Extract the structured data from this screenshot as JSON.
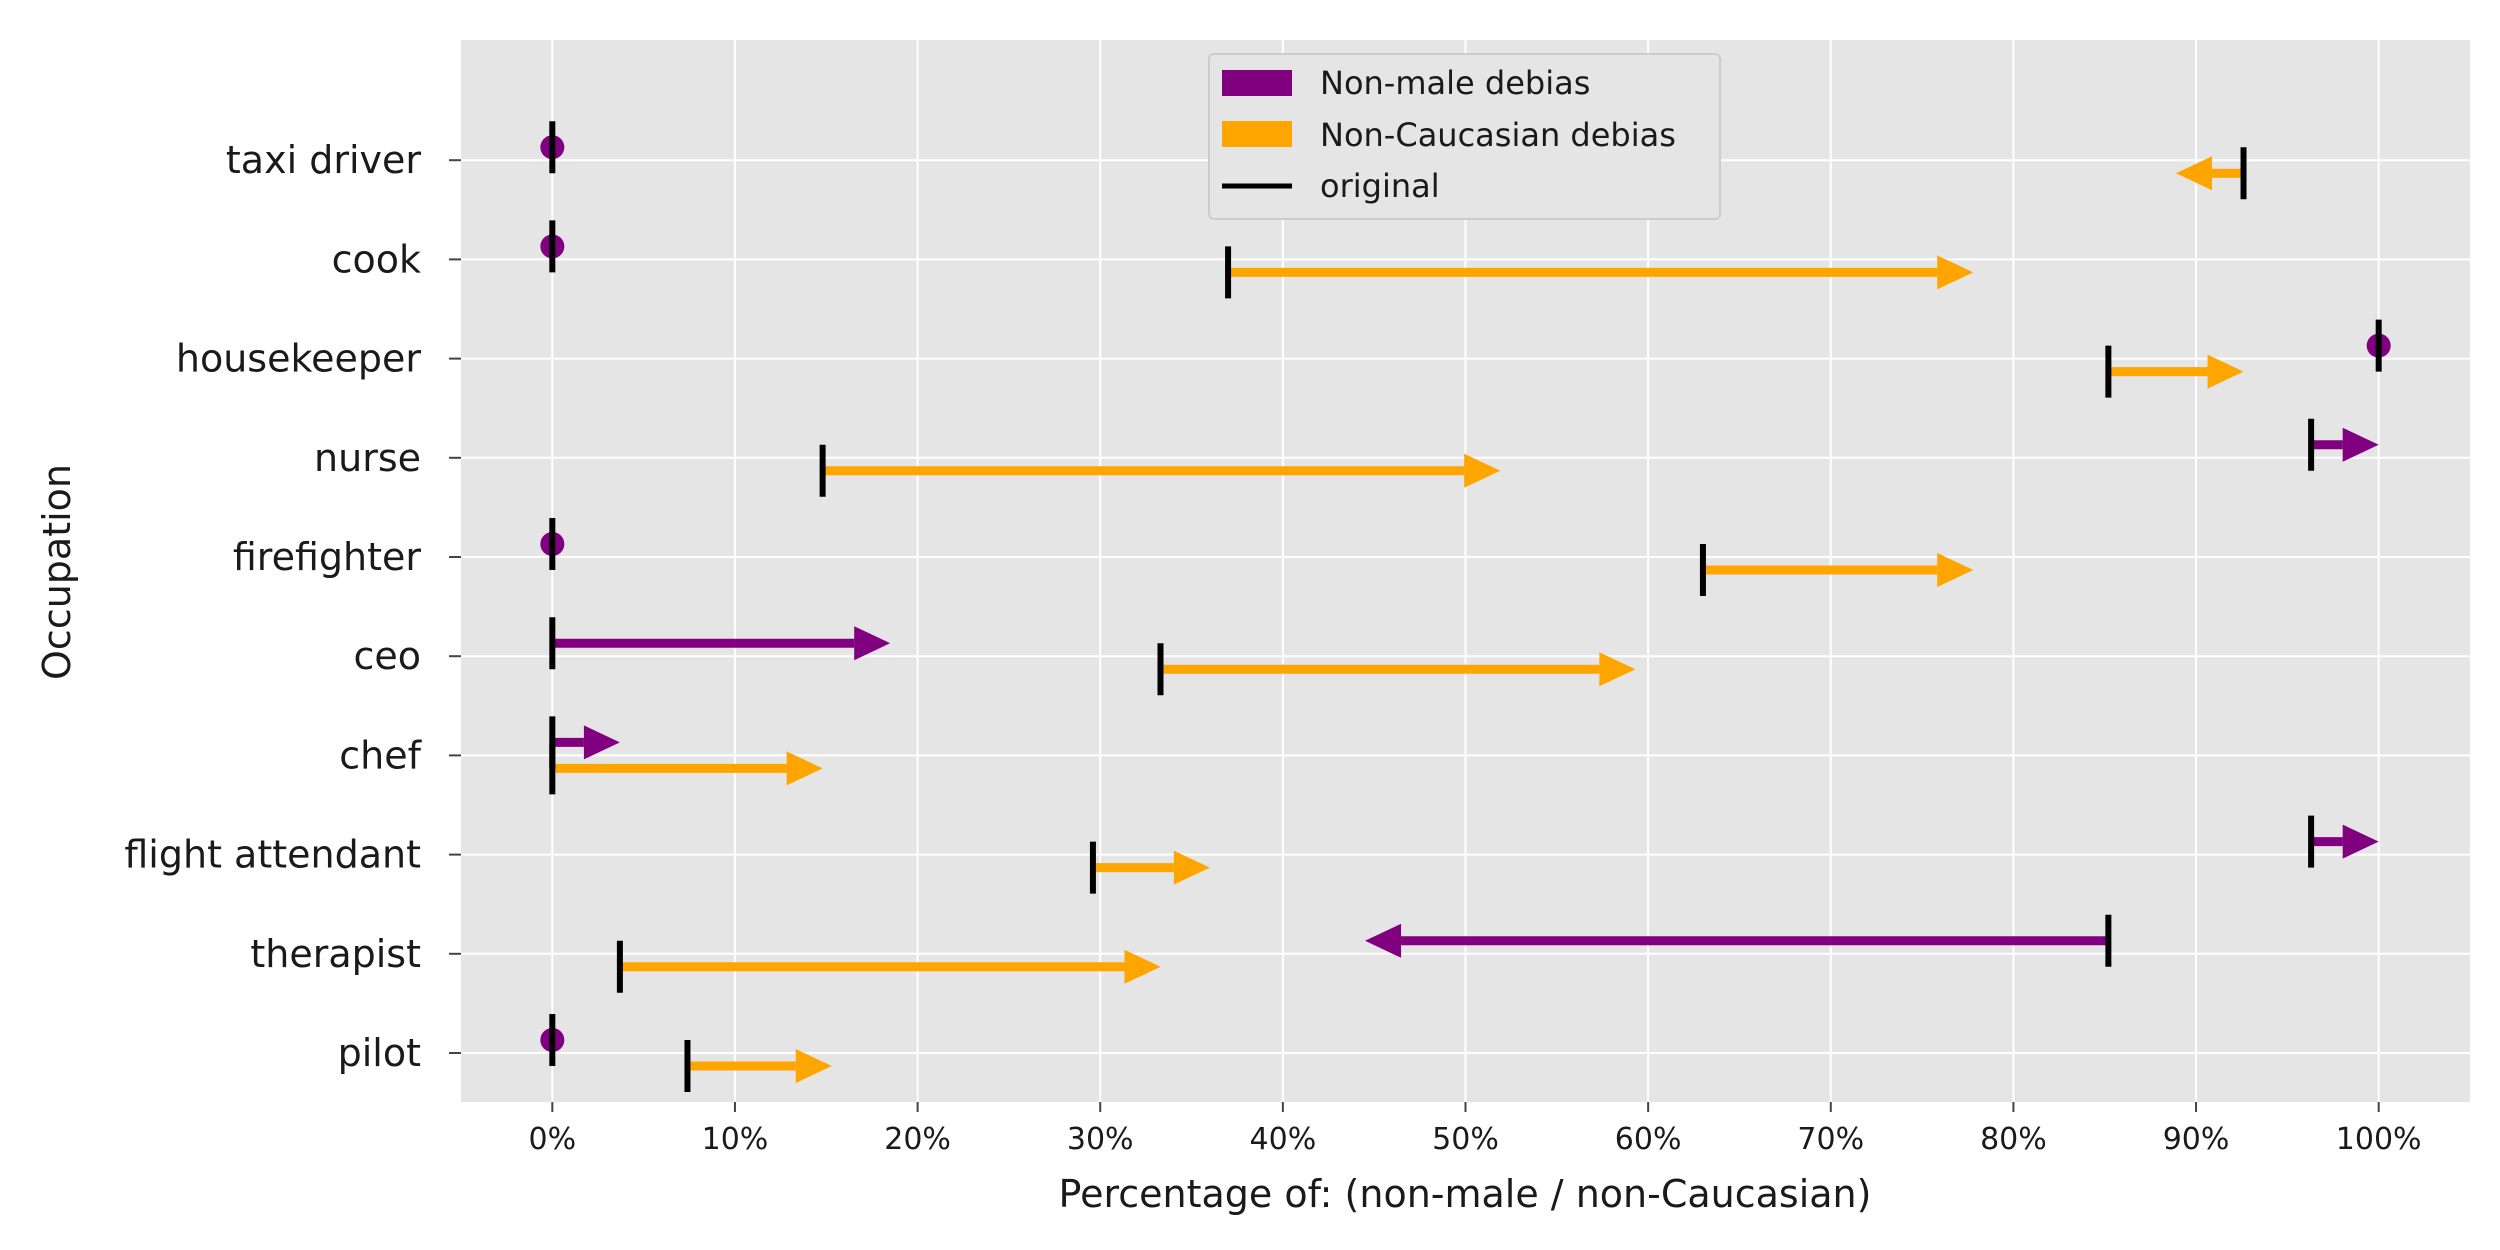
{
  "chart_data": {
    "type": "arrow-dumbbell",
    "xlabel": "Percentage of: (non-male / non-Caucasian)",
    "ylabel": "Occupation",
    "xlim": [
      -5,
      105
    ],
    "xticks": [
      0,
      10,
      20,
      30,
      40,
      50,
      60,
      70,
      80,
      90,
      100
    ],
    "xtick_labels": [
      "0%",
      "10%",
      "20%",
      "30%",
      "40%",
      "50%",
      "60%",
      "70%",
      "80%",
      "90%",
      "100%"
    ],
    "categories": [
      "pilot",
      "therapist",
      "flight attendant",
      "chef",
      "ceo",
      "firefighter",
      "nurse",
      "housekeeper",
      "cook",
      "taxi driver"
    ],
    "grid": true,
    "legend_position": "top-center",
    "legend": [
      {
        "label": "Non-male debias",
        "kind": "patch",
        "color": "#800080"
      },
      {
        "label": "Non-Caucasian debias",
        "kind": "patch",
        "color": "#FFA500"
      },
      {
        "label": "original",
        "kind": "line",
        "color": "#000000"
      }
    ],
    "series": [
      {
        "name": "Non-male debias",
        "color": "#800080",
        "original": [
          0,
          85.2,
          96.3,
          0,
          0,
          0,
          96.3,
          100,
          0,
          0
        ],
        "debiased": [
          0,
          44.5,
          100,
          3.7,
          18.5,
          0,
          100,
          100,
          0,
          0
        ]
      },
      {
        "name": "Non-Caucasian debias",
        "color": "#FFA500",
        "original": [
          7.4,
          3.7,
          29.6,
          0,
          33.3,
          63,
          14.8,
          85.2,
          37,
          92.6
        ],
        "debiased": [
          15.3,
          33.3,
          36,
          14.8,
          59.3,
          77.8,
          51.9,
          92.6,
          77.8,
          88.9
        ]
      }
    ]
  }
}
